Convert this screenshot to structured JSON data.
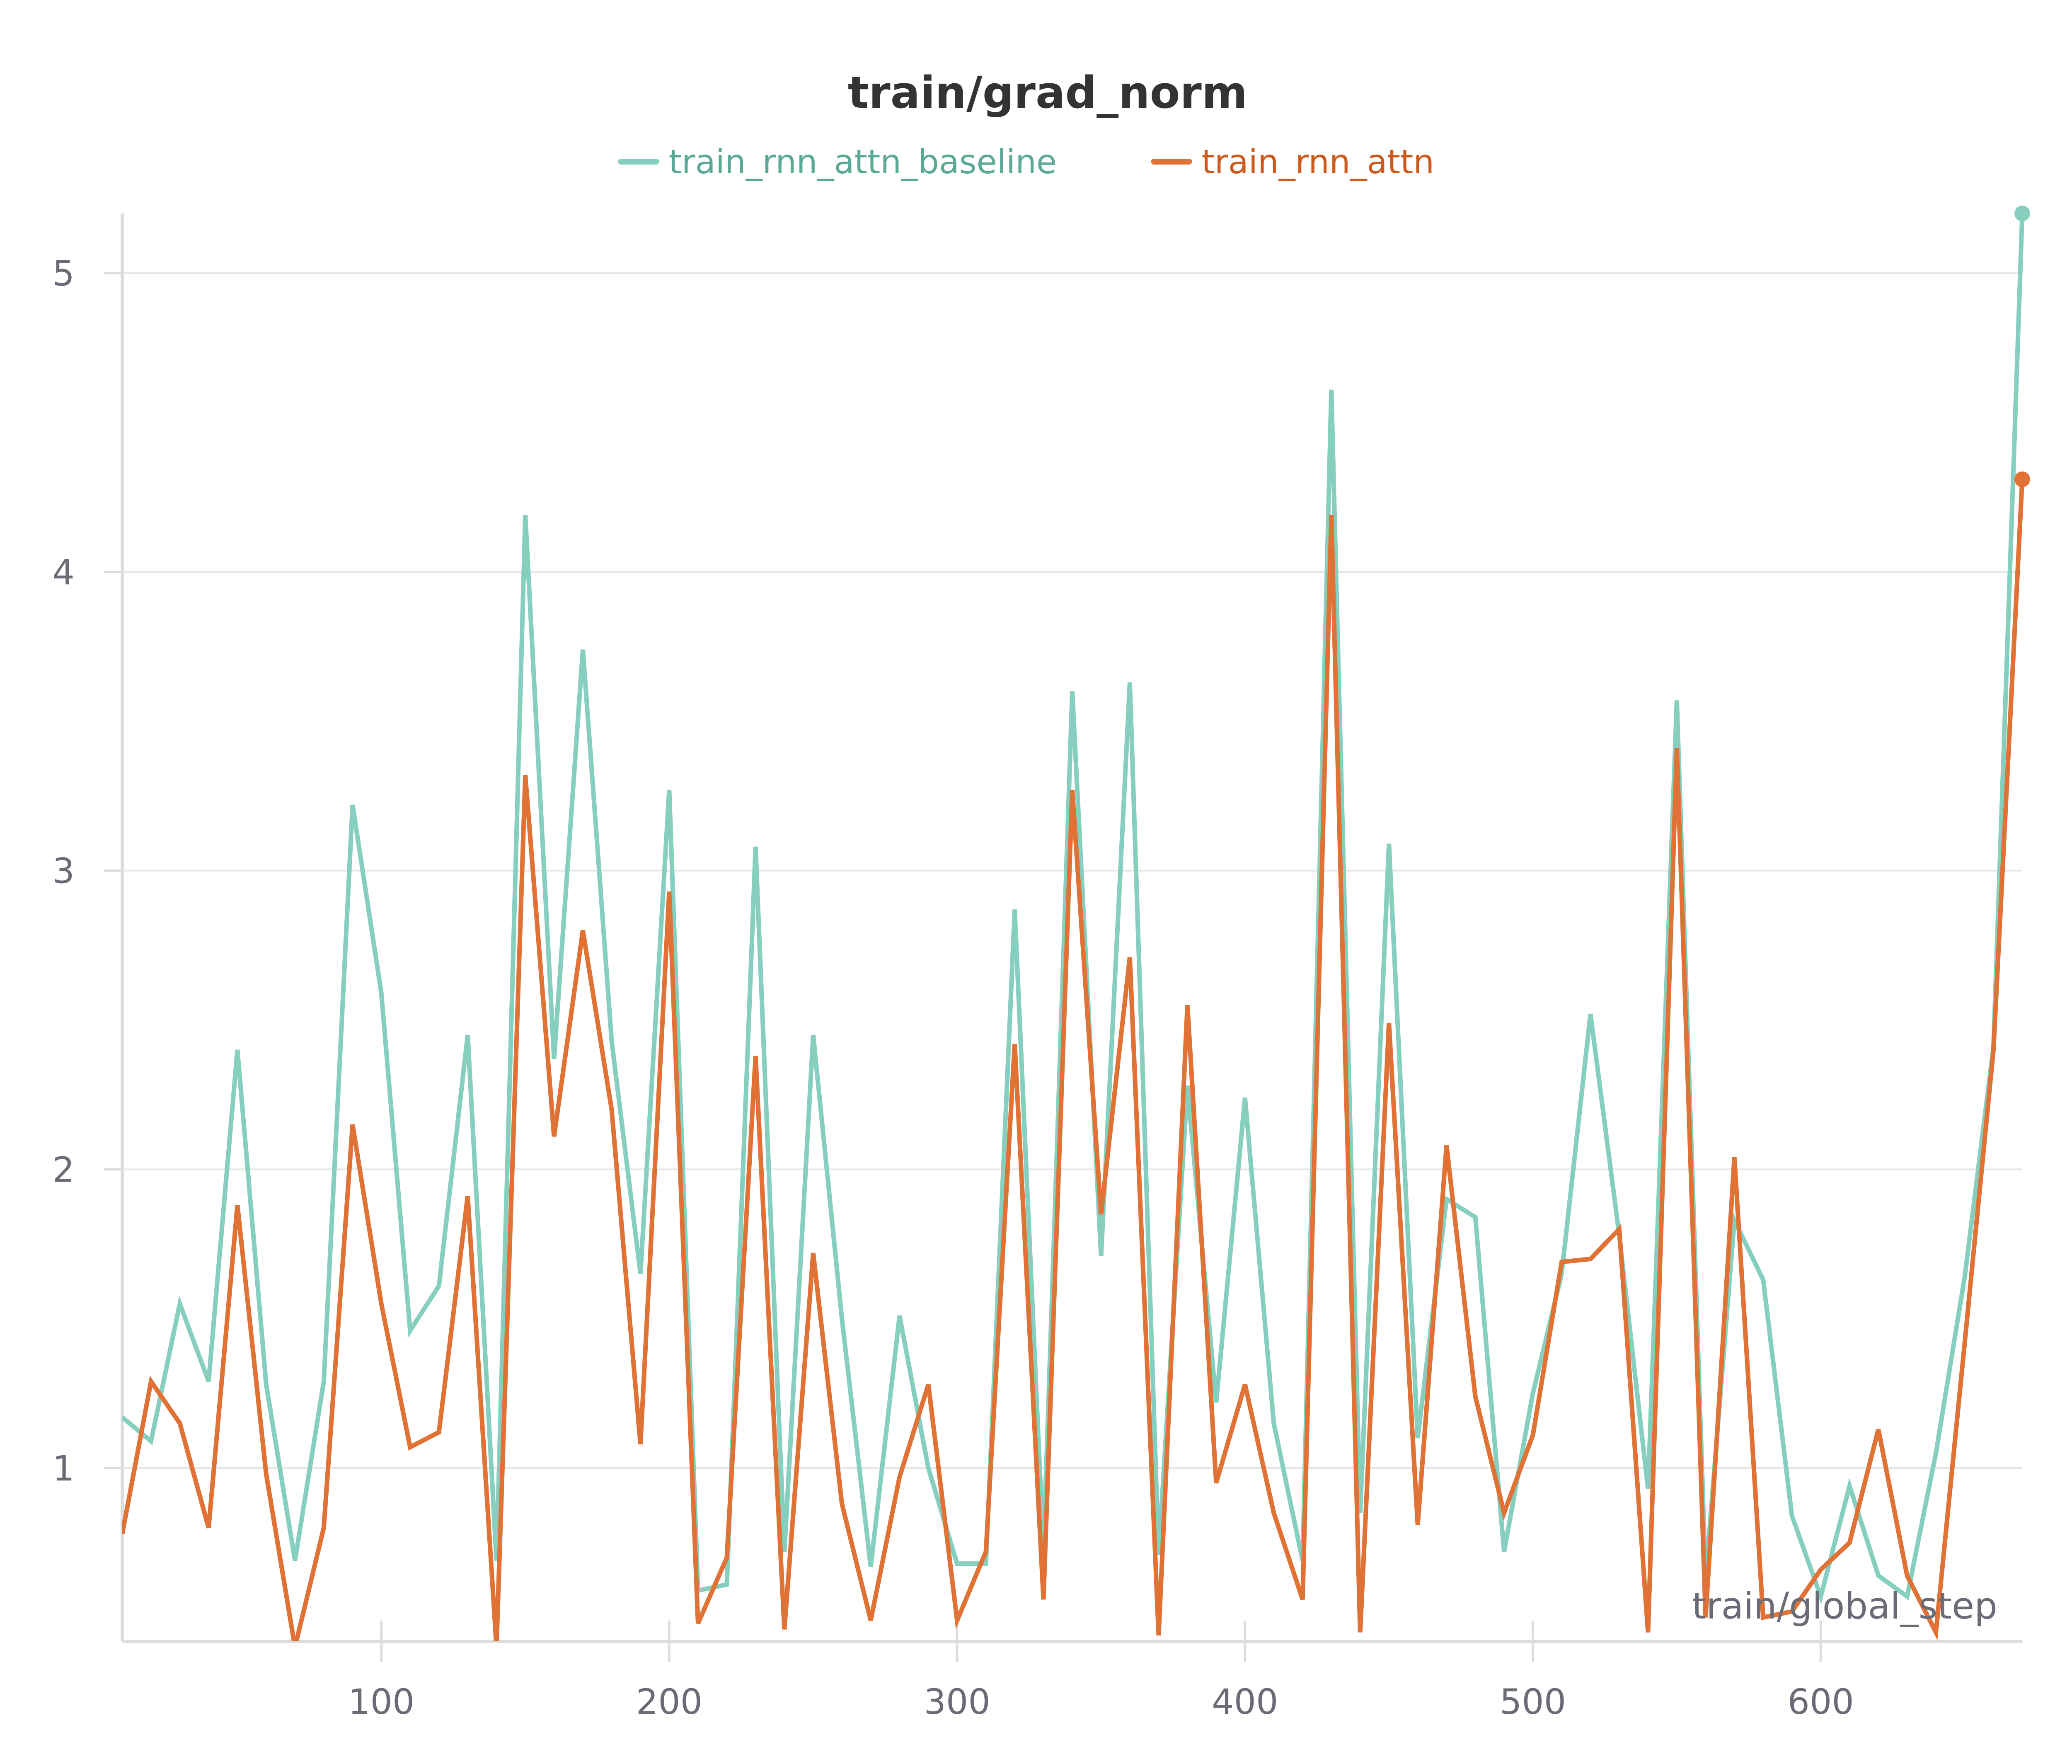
{
  "chart_data": {
    "type": "line",
    "title": "train/grad_norm",
    "xlabel": "train/global_step",
    "ylabel": "",
    "xlim": [
      10,
      670
    ],
    "ylim": [
      0.42,
      5.2
    ],
    "x_ticks": [
      100,
      200,
      300,
      400,
      500,
      600
    ],
    "y_ticks": [
      1,
      2,
      3,
      4,
      5
    ],
    "grid": "horizontal",
    "legend_position": "top-center",
    "x": [
      10,
      20,
      30,
      40,
      50,
      60,
      70,
      80,
      90,
      100,
      110,
      120,
      130,
      140,
      150,
      160,
      170,
      180,
      190,
      200,
      210,
      220,
      230,
      240,
      250,
      260,
      270,
      280,
      290,
      300,
      310,
      320,
      330,
      340,
      350,
      360,
      370,
      380,
      390,
      400,
      410,
      420,
      430,
      440,
      450,
      460,
      470,
      480,
      490,
      500,
      510,
      520,
      530,
      540,
      550,
      560,
      570,
      580,
      590,
      600,
      610,
      620,
      630,
      640,
      650,
      660,
      670
    ],
    "series": [
      {
        "name": "train_rnn_attn_baseline",
        "color": "#86cfbf",
        "legend_text_color": "#5aa896",
        "values": [
          1.17,
          1.09,
          1.55,
          1.29,
          2.4,
          1.28,
          0.69,
          1.29,
          3.22,
          2.59,
          1.46,
          1.61,
          2.45,
          0.69,
          4.19,
          2.37,
          3.74,
          2.43,
          1.65,
          3.27,
          0.59,
          0.61,
          3.08,
          0.72,
          2.45,
          1.5,
          0.67,
          1.51,
          1.0,
          0.68,
          0.68,
          2.87,
          0.72,
          3.6,
          1.71,
          3.63,
          0.71,
          2.28,
          1.22,
          2.24,
          1.15,
          0.69,
          4.61,
          0.85,
          3.09,
          1.1,
          1.9,
          1.84,
          0.72,
          1.25,
          1.65,
          2.52,
          1.78,
          0.93,
          3.57,
          0.63,
          1.83,
          1.63,
          0.84,
          0.57,
          0.94,
          0.64,
          0.57,
          1.05,
          1.64,
          2.41,
          5.2
        ]
      },
      {
        "name": "train_rnn_attn",
        "color": "#e07236",
        "legend_text_color": "#cc5a1c",
        "values": [
          0.78,
          1.29,
          1.15,
          0.8,
          1.88,
          0.98,
          0.4,
          0.8,
          2.15,
          1.55,
          1.07,
          1.12,
          1.91,
          0.4,
          3.32,
          2.11,
          2.8,
          2.2,
          1.08,
          2.93,
          0.48,
          0.7,
          2.38,
          0.46,
          1.72,
          0.88,
          0.49,
          0.97,
          1.28,
          0.49,
          0.72,
          2.42,
          0.56,
          3.27,
          1.85,
          2.71,
          0.44,
          2.55,
          0.95,
          1.28,
          0.85,
          0.56,
          4.19,
          0.45,
          2.49,
          0.81,
          2.08,
          1.24,
          0.85,
          1.11,
          1.69,
          1.7,
          1.8,
          0.45,
          3.41,
          0.5,
          2.04,
          0.5,
          0.52,
          0.66,
          0.75,
          1.13,
          0.64,
          0.45,
          1.42,
          2.4,
          4.31
        ]
      }
    ]
  }
}
